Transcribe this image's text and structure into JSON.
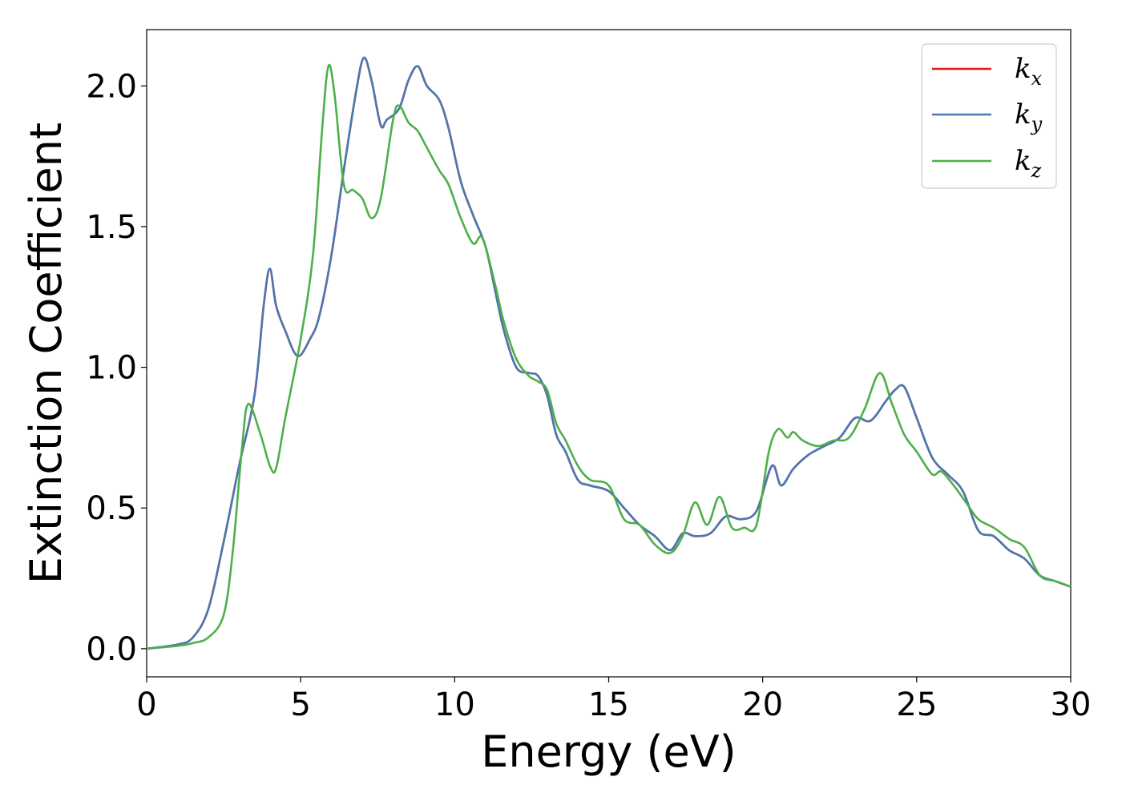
{
  "chart_data": {
    "type": "line",
    "xlabel": "Energy (eV)",
    "ylabel": "Extinction Coefficient",
    "xlim": [
      0,
      30
    ],
    "ylim": [
      -0.1,
      2.2
    ],
    "xticks": [
      0,
      5,
      10,
      15,
      20,
      25,
      30
    ],
    "yticks": [
      0.0,
      0.5,
      1.0,
      1.5,
      2.0
    ],
    "xtick_labels": [
      "0",
      "5",
      "10",
      "15",
      "20",
      "25",
      "30"
    ],
    "ytick_labels": [
      "0.0",
      "0.5",
      "1.0",
      "1.5",
      "2.0"
    ],
    "grid": false,
    "legend_position": "top-right",
    "series": [
      {
        "name": "k_x",
        "legend_base": "k",
        "legend_sub": "x",
        "color": "#e41a1c",
        "x": [
          0,
          1,
          1.5,
          2,
          2.5,
          3,
          3.5,
          3.8,
          4,
          4.2,
          4.5,
          4.9,
          5.3,
          5.6,
          6,
          6.4,
          6.8,
          7.05,
          7.3,
          7.6,
          7.8,
          8.2,
          8.5,
          8.8,
          9.1,
          9.5,
          9.8,
          10.2,
          10.6,
          11,
          11.3,
          11.6,
          12,
          12.4,
          12.7,
          13,
          13.3,
          13.6,
          14,
          14.4,
          15,
          15.5,
          16,
          16.5,
          17,
          17.4,
          17.8,
          18.3,
          18.8,
          19.3,
          19.8,
          20.3,
          20.6,
          21,
          21.5,
          22,
          22.5,
          23,
          23.5,
          24,
          24.3,
          24.6,
          25,
          25.5,
          26,
          26.5,
          27,
          27.5,
          28,
          28.5,
          29,
          29.5,
          30
        ],
        "values": [
          0,
          0.015,
          0.04,
          0.14,
          0.38,
          0.65,
          0.9,
          1.22,
          1.35,
          1.22,
          1.13,
          1.04,
          1.1,
          1.18,
          1.4,
          1.7,
          1.98,
          2.1,
          2.02,
          1.86,
          1.88,
          1.92,
          2.02,
          2.07,
          2.0,
          1.95,
          1.85,
          1.66,
          1.54,
          1.43,
          1.28,
          1.13,
          1.0,
          0.98,
          0.97,
          0.9,
          0.76,
          0.7,
          0.6,
          0.58,
          0.56,
          0.5,
          0.44,
          0.4,
          0.35,
          0.41,
          0.4,
          0.41,
          0.47,
          0.46,
          0.49,
          0.65,
          0.58,
          0.64,
          0.69,
          0.72,
          0.75,
          0.82,
          0.81,
          0.88,
          0.92,
          0.93,
          0.82,
          0.68,
          0.62,
          0.56,
          0.42,
          0.4,
          0.35,
          0.32,
          0.26,
          0.24,
          0.22
        ]
      },
      {
        "name": "k_y",
        "legend_base": "k",
        "legend_sub": "y",
        "color": "#4a78b0",
        "x": [
          0,
          1,
          1.5,
          2,
          2.5,
          3,
          3.5,
          3.8,
          4,
          4.2,
          4.5,
          4.9,
          5.3,
          5.6,
          6,
          6.4,
          6.8,
          7.05,
          7.3,
          7.6,
          7.8,
          8.2,
          8.5,
          8.8,
          9.1,
          9.5,
          9.8,
          10.2,
          10.6,
          11,
          11.3,
          11.6,
          12,
          12.4,
          12.7,
          13,
          13.3,
          13.6,
          14,
          14.4,
          15,
          15.5,
          16,
          16.5,
          17,
          17.4,
          17.8,
          18.3,
          18.8,
          19.3,
          19.8,
          20.3,
          20.6,
          21,
          21.5,
          22,
          22.5,
          23,
          23.5,
          24,
          24.3,
          24.6,
          25,
          25.5,
          26,
          26.5,
          27,
          27.5,
          28,
          28.5,
          29,
          29.5,
          30
        ],
        "values": [
          0,
          0.015,
          0.04,
          0.14,
          0.38,
          0.65,
          0.9,
          1.22,
          1.35,
          1.22,
          1.13,
          1.04,
          1.1,
          1.18,
          1.4,
          1.7,
          1.98,
          2.1,
          2.02,
          1.86,
          1.88,
          1.92,
          2.02,
          2.07,
          2.0,
          1.95,
          1.85,
          1.66,
          1.54,
          1.43,
          1.28,
          1.13,
          1.0,
          0.98,
          0.97,
          0.9,
          0.76,
          0.7,
          0.6,
          0.58,
          0.56,
          0.5,
          0.44,
          0.4,
          0.35,
          0.41,
          0.4,
          0.41,
          0.47,
          0.46,
          0.49,
          0.65,
          0.58,
          0.64,
          0.69,
          0.72,
          0.75,
          0.82,
          0.81,
          0.88,
          0.92,
          0.93,
          0.82,
          0.68,
          0.62,
          0.56,
          0.42,
          0.4,
          0.35,
          0.32,
          0.26,
          0.24,
          0.22
        ]
      },
      {
        "name": "k_z",
        "legend_base": "k",
        "legend_sub": "z",
        "color": "#4daf4a",
        "x": [
          0,
          1,
          1.5,
          2,
          2.5,
          2.8,
          3.1,
          3.3,
          3.7,
          4,
          4.2,
          4.5,
          5,
          5.4,
          5.7,
          5.9,
          6.1,
          6.4,
          6.7,
          7,
          7.3,
          7.6,
          8,
          8.2,
          8.5,
          8.8,
          9.1,
          9.5,
          9.8,
          10.2,
          10.6,
          10.9,
          11.3,
          11.6,
          12,
          12.4,
          12.7,
          13,
          13.3,
          13.6,
          14,
          14.4,
          15,
          15.5,
          16,
          16.5,
          17,
          17.4,
          17.8,
          18.2,
          18.6,
          19,
          19.4,
          19.8,
          20.2,
          20.5,
          20.8,
          21,
          21.3,
          21.8,
          22.3,
          22.8,
          23.3,
          23.8,
          24.2,
          24.6,
          25,
          25.5,
          25.8,
          26.2,
          26.6,
          27,
          27.5,
          28,
          28.5,
          29,
          29.5,
          30
        ],
        "values": [
          0,
          0.01,
          0.02,
          0.04,
          0.12,
          0.35,
          0.72,
          0.87,
          0.76,
          0.65,
          0.64,
          0.82,
          1.1,
          1.4,
          1.85,
          2.07,
          1.97,
          1.65,
          1.63,
          1.6,
          1.53,
          1.6,
          1.88,
          1.93,
          1.87,
          1.84,
          1.78,
          1.7,
          1.65,
          1.53,
          1.44,
          1.46,
          1.3,
          1.16,
          1.03,
          0.97,
          0.95,
          0.92,
          0.8,
          0.74,
          0.65,
          0.6,
          0.58,
          0.46,
          0.44,
          0.37,
          0.34,
          0.4,
          0.52,
          0.44,
          0.54,
          0.43,
          0.43,
          0.44,
          0.7,
          0.78,
          0.75,
          0.77,
          0.74,
          0.72,
          0.74,
          0.75,
          0.85,
          0.98,
          0.87,
          0.76,
          0.7,
          0.62,
          0.63,
          0.58,
          0.52,
          0.46,
          0.43,
          0.39,
          0.36,
          0.26,
          0.24,
          0.22
        ]
      }
    ]
  }
}
